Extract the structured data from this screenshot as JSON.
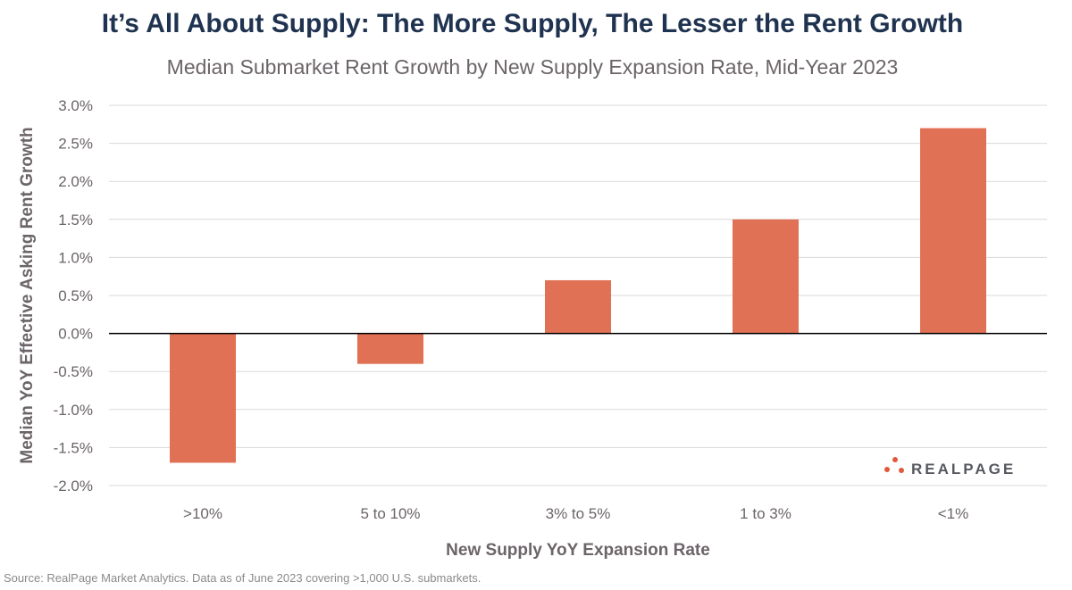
{
  "title": "It’s All About Supply: The More Supply, The Lesser the Rent Growth",
  "subtitle": "Median Submarket Rent Growth by New Supply Expansion Rate, Mid-Year 2023",
  "source": "Source: RealPage Market Analytics. Data as of June 2023 covering >1,000 U.S. submarkets.",
  "logo": "REALPAGE",
  "colors": {
    "bar": "#e07155",
    "grid": "#d9d9d9",
    "zero_line": "#000000",
    "title": "#1f3350",
    "logo_dots": "#e05a3a"
  },
  "chart_data": {
    "type": "bar",
    "categories": [
      ">10%",
      "5 to 10%",
      "3% to 5%",
      "1 to 3%",
      "<1%"
    ],
    "values": [
      -1.7,
      -0.4,
      0.7,
      1.5,
      2.7
    ],
    "xlabel": "New Supply YoY Expansion Rate",
    "ylabel": "Median YoY Effective Asking Rent Growth",
    "ylim": [
      -2.0,
      3.0
    ],
    "yticks": [
      "3.0%",
      "2.5%",
      "2.0%",
      "1.5%",
      "1.0%",
      "0.5%",
      "0.0%",
      "-0.5%",
      "-1.0%",
      "-1.5%",
      "-2.0%"
    ],
    "grid": true,
    "legend": "none"
  }
}
